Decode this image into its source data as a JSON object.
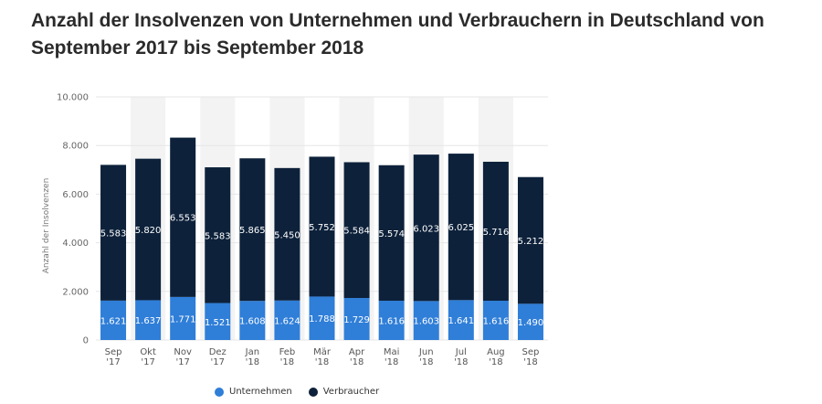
{
  "title": "Anzahl der Insolvenzen von Unternehmen und Verbrauchern in Deutschland von September 2017 bis September 2018",
  "colors": {
    "unternehmen": "#2f7ed8",
    "verbraucher": "#0d213a",
    "band": "#f3f3f3",
    "grid": "#e6e6e6"
  },
  "chart_data": {
    "type": "bar",
    "stacked": true,
    "categories": [
      "Sep '17",
      "Okt '17",
      "Nov '17",
      "Dez '17",
      "Jan '18",
      "Feb '18",
      "Mär '18",
      "Apr '18",
      "Mai '18",
      "Jun '18",
      "Jul '18",
      "Aug '18",
      "Sep '18"
    ],
    "category_lines": [
      [
        "Sep",
        "'17"
      ],
      [
        "Okt",
        "'17"
      ],
      [
        "Nov",
        "'17"
      ],
      [
        "Dez",
        "'17"
      ],
      [
        "Jan",
        "'18"
      ],
      [
        "Feb",
        "'18"
      ],
      [
        "Mär",
        "'18"
      ],
      [
        "Apr",
        "'18"
      ],
      [
        "Mai",
        "'18"
      ],
      [
        "Jun",
        "'18"
      ],
      [
        "Jul",
        "'18"
      ],
      [
        "Aug",
        "'18"
      ],
      [
        "Sep",
        "'18"
      ]
    ],
    "series": [
      {
        "name": "Unternehmen",
        "values": [
          1621,
          1637,
          1771,
          1521,
          1608,
          1624,
          1788,
          1729,
          1616,
          1603,
          1641,
          1616,
          1490
        ],
        "labels": [
          "1.621",
          "1.637",
          "1.771",
          "1.521",
          "1.608",
          "1.624",
          "1.788",
          "1.729",
          "1.616",
          "1.603",
          "1.641",
          "1.616",
          "1.490"
        ]
      },
      {
        "name": "Verbraucher",
        "values": [
          5583,
          5820,
          6553,
          5583,
          5865,
          5450,
          5752,
          5584,
          5574,
          6023,
          6025,
          5716,
          5212
        ],
        "labels": [
          "5.583",
          "5.820",
          "6.553",
          "5.583",
          "5.865",
          "5.450",
          "5.752",
          "5.584",
          "5.574",
          "6.023",
          "6.025",
          "5.716",
          "5.212"
        ]
      }
    ],
    "ylabel": "Anzahl der Insolvenzen",
    "ylim": [
      0,
      10000
    ],
    "yticks": [
      0,
      2000,
      4000,
      6000,
      8000,
      10000
    ],
    "ytick_labels": [
      "0",
      "2.000",
      "4.000",
      "6.000",
      "8.000",
      "10.000"
    ],
    "grid": true,
    "legend": "bottom-center"
  }
}
